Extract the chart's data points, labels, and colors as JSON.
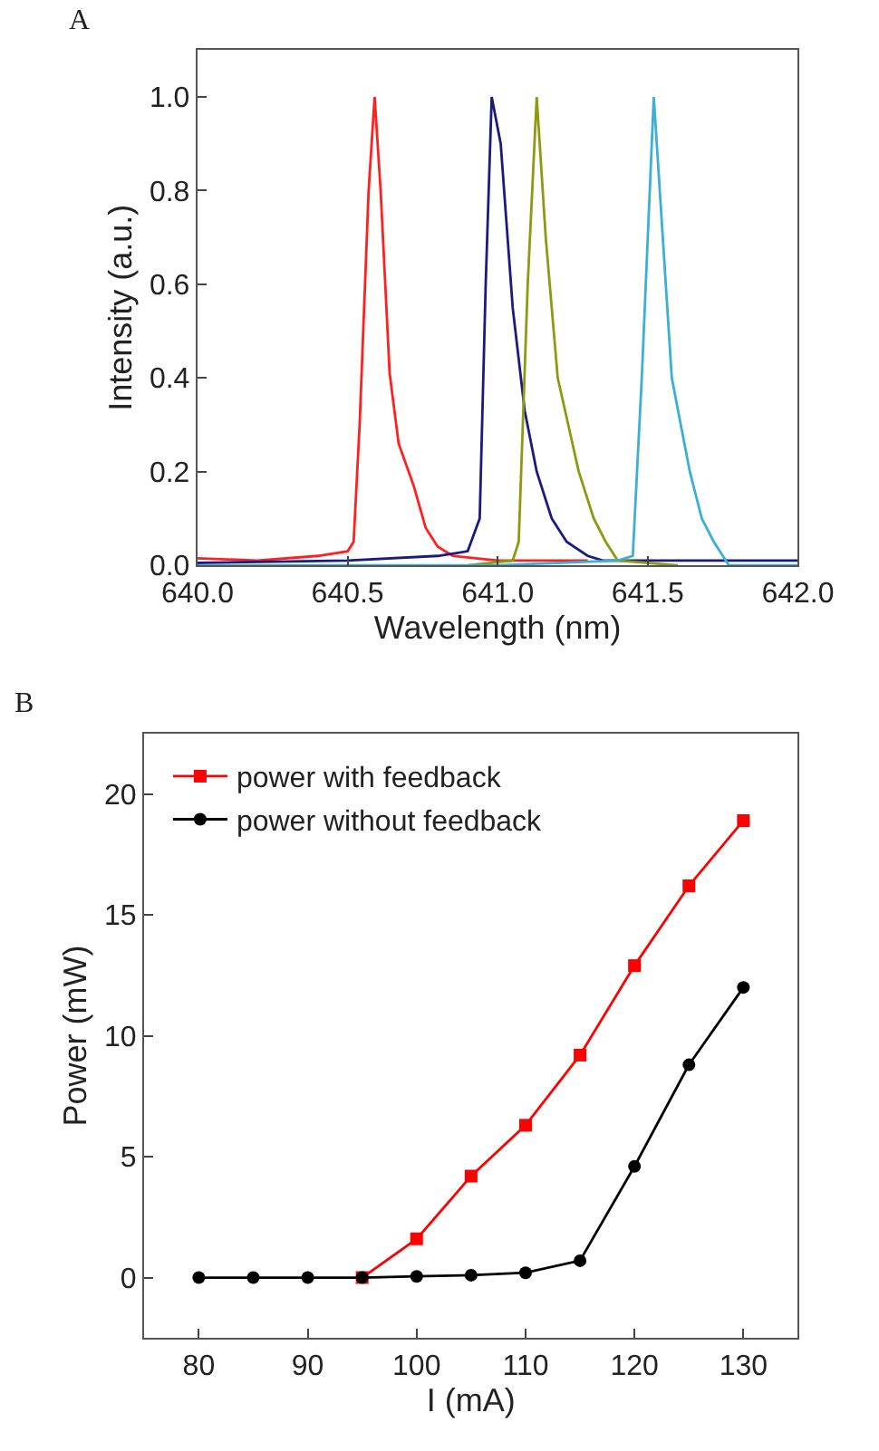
{
  "chart_data": [
    {
      "type": "line",
      "title": "A",
      "xlabel": "Wavelength (nm)",
      "ylabel": "Intensity (a.u.)",
      "xlim": [
        640.0,
        642.0
      ],
      "ylim": [
        0,
        1.1
      ],
      "xticks": [
        {
          "value": 640.0,
          "label": "640.0"
        },
        {
          "value": 640.5,
          "label": "640.5"
        },
        {
          "value": 641.0,
          "label": "641.0"
        },
        {
          "value": 641.5,
          "label": "641.5"
        },
        {
          "value": 642.0,
          "label": "642.0"
        }
      ],
      "yticks": [
        {
          "value": 0,
          "label": "0.0"
        },
        0.2,
        0.4,
        0.6,
        0.8,
        {
          "value": 1,
          "label": "1.0"
        }
      ],
      "legend": false,
      "marker": "none",
      "series": [
        {
          "color": "#ff2020",
          "x": [
            640.0,
            640.2,
            640.4,
            640.5,
            640.52,
            640.54,
            640.57,
            640.59,
            640.61,
            640.64,
            640.67,
            640.72,
            640.76,
            640.8,
            640.85,
            641.0,
            641.3
          ],
          "values": [
            0.015,
            0.01,
            0.02,
            0.03,
            0.05,
            0.3,
            0.8,
            1.0,
            0.8,
            0.41,
            0.26,
            0.17,
            0.08,
            0.04,
            0.02,
            0.01,
            0.01
          ]
        },
        {
          "color": "#1a1a80",
          "x": [
            640.0,
            640.5,
            640.8,
            640.9,
            640.94,
            640.96,
            640.98,
            641.01,
            641.05,
            641.09,
            641.13,
            641.18,
            641.23,
            641.3,
            641.35,
            641.6,
            642.0
          ],
          "values": [
            0.005,
            0.01,
            0.02,
            0.03,
            0.1,
            0.6,
            1.0,
            0.9,
            0.55,
            0.33,
            0.2,
            0.1,
            0.05,
            0.02,
            0.01,
            0.01,
            0.01
          ]
        },
        {
          "color": "#8c9a10",
          "x": [
            640.9,
            641.05,
            641.07,
            641.1,
            641.13,
            641.16,
            641.2,
            641.27,
            641.32,
            641.36,
            641.4,
            641.6
          ],
          "values": [
            0.0,
            0.01,
            0.05,
            0.6,
            1.0,
            0.7,
            0.4,
            0.2,
            0.1,
            0.05,
            0.01,
            0.0
          ]
        },
        {
          "color": "#3ab0d8",
          "x": [
            640.0,
            641.0,
            641.4,
            641.45,
            641.48,
            641.52,
            641.55,
            641.58,
            641.64,
            641.68,
            641.72,
            641.77,
            642.0
          ],
          "values": [
            0.0,
            0.0,
            0.01,
            0.02,
            0.4,
            1.0,
            0.7,
            0.4,
            0.2,
            0.1,
            0.05,
            0.0,
            0.0
          ]
        }
      ]
    },
    {
      "type": "line",
      "title": "B",
      "xlabel": "I (mA)",
      "ylabel": "Power (mW)",
      "xlim": [
        75,
        135
      ],
      "ylim": [
        -2.5,
        22.5
      ],
      "xticks": [
        80,
        90,
        100,
        110,
        120,
        130
      ],
      "yticks": [
        0,
        5,
        10,
        15,
        20
      ],
      "legend": "top left",
      "series": [
        {
          "name": "power with feedback",
          "color": "#ff0000",
          "marker": "square",
          "x": [
            95,
            100,
            105,
            110,
            115,
            120,
            125,
            130
          ],
          "values": [
            0,
            1.6,
            4.2,
            6.3,
            9.2,
            12.9,
            16.2,
            18.9
          ]
        },
        {
          "name": "power without feedback",
          "color": "#000000",
          "marker": "circle",
          "x": [
            80,
            85,
            90,
            95,
            100,
            105,
            110,
            115,
            120,
            125,
            130
          ],
          "values": [
            0,
            0,
            0,
            0,
            0.05,
            0.1,
            0.2,
            0.7,
            4.6,
            8.8,
            12.0
          ]
        }
      ]
    }
  ]
}
